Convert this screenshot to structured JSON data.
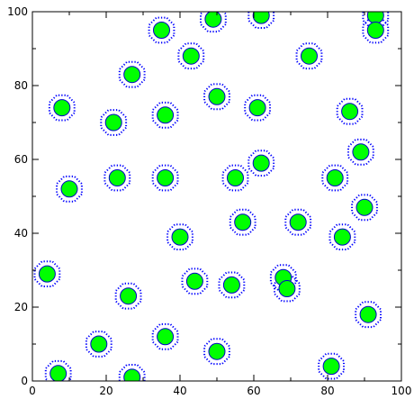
{
  "chart_data": {
    "type": "scatter",
    "title": "",
    "xlabel": "",
    "ylabel": "",
    "xlim": [
      0,
      100
    ],
    "ylim": [
      0,
      100
    ],
    "x_ticks": [
      "0",
      "20",
      "40",
      "60",
      "80",
      "100"
    ],
    "y_ticks": [
      "0",
      "20",
      "40",
      "60",
      "80",
      "100"
    ],
    "grid": false,
    "marker_color": "#00ff00",
    "marker_edge_color": "#0000cc",
    "outline_color": "#0000ff",
    "outline_style": "dotted",
    "points": [
      {
        "x": 7,
        "y": 2
      },
      {
        "x": 27,
        "y": 1
      },
      {
        "x": 18,
        "y": 10
      },
      {
        "x": 36,
        "y": 12
      },
      {
        "x": 50,
        "y": 8
      },
      {
        "x": 81,
        "y": 4
      },
      {
        "x": 91,
        "y": 18
      },
      {
        "x": 26,
        "y": 23
      },
      {
        "x": 44,
        "y": 27
      },
      {
        "x": 54,
        "y": 26
      },
      {
        "x": 68,
        "y": 28
      },
      {
        "x": 69,
        "y": 25
      },
      {
        "x": 4,
        "y": 29
      },
      {
        "x": 40,
        "y": 39
      },
      {
        "x": 57,
        "y": 43
      },
      {
        "x": 72,
        "y": 43
      },
      {
        "x": 84,
        "y": 39
      },
      {
        "x": 90,
        "y": 47
      },
      {
        "x": 10,
        "y": 52
      },
      {
        "x": 23,
        "y": 55
      },
      {
        "x": 36,
        "y": 55
      },
      {
        "x": 55,
        "y": 55
      },
      {
        "x": 62,
        "y": 59
      },
      {
        "x": 82,
        "y": 55
      },
      {
        "x": 89,
        "y": 62
      },
      {
        "x": 8,
        "y": 74
      },
      {
        "x": 22,
        "y": 70
      },
      {
        "x": 36,
        "y": 72
      },
      {
        "x": 50,
        "y": 77
      },
      {
        "x": 61,
        "y": 74
      },
      {
        "x": 86,
        "y": 73
      },
      {
        "x": 27,
        "y": 83
      },
      {
        "x": 43,
        "y": 88
      },
      {
        "x": 75,
        "y": 88
      },
      {
        "x": 35,
        "y": 95
      },
      {
        "x": 49,
        "y": 98
      },
      {
        "x": 62,
        "y": 99
      },
      {
        "x": 93,
        "y": 99
      },
      {
        "x": 93,
        "y": 95
      }
    ]
  }
}
